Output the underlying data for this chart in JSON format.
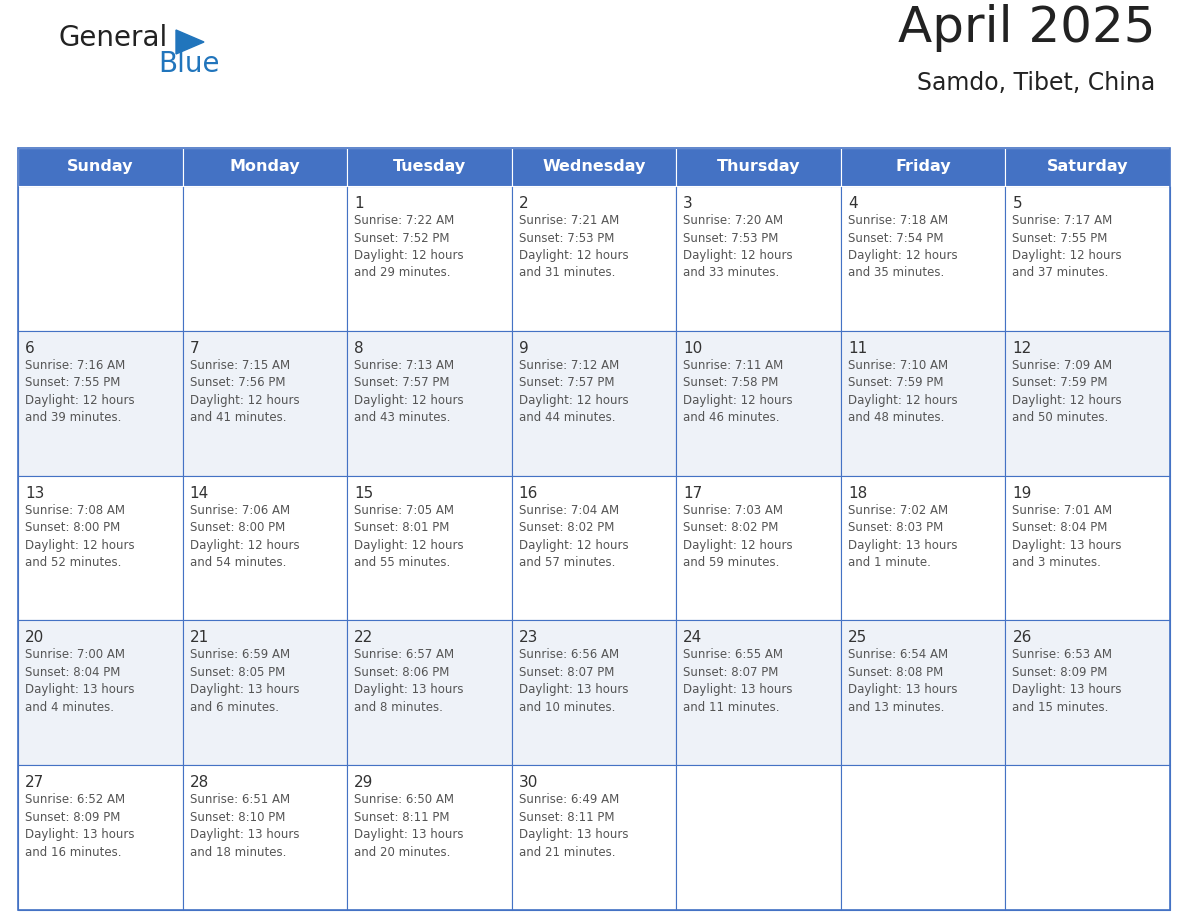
{
  "title": "April 2025",
  "subtitle": "Samdo, Tibet, China",
  "header_color": "#4472C4",
  "header_text_color": "#FFFFFF",
  "title_color": "#222222",
  "subtitle_color": "#222222",
  "day_number_color": "#333333",
  "cell_text_color": "#555555",
  "grid_line_color": "#4472C4",
  "cell_bg_even": "#FFFFFF",
  "cell_bg_odd": "#EEF2F8",
  "logo_general_color": "#222222",
  "logo_blue_color": "#2175BC",
  "logo_triangle_color": "#2175BC",
  "day_names": [
    "Sunday",
    "Monday",
    "Tuesday",
    "Wednesday",
    "Thursday",
    "Friday",
    "Saturday"
  ],
  "weeks": [
    [
      {
        "day": "",
        "text": ""
      },
      {
        "day": "",
        "text": ""
      },
      {
        "day": "1",
        "text": "Sunrise: 7:22 AM\nSunset: 7:52 PM\nDaylight: 12 hours\nand 29 minutes."
      },
      {
        "day": "2",
        "text": "Sunrise: 7:21 AM\nSunset: 7:53 PM\nDaylight: 12 hours\nand 31 minutes."
      },
      {
        "day": "3",
        "text": "Sunrise: 7:20 AM\nSunset: 7:53 PM\nDaylight: 12 hours\nand 33 minutes."
      },
      {
        "day": "4",
        "text": "Sunrise: 7:18 AM\nSunset: 7:54 PM\nDaylight: 12 hours\nand 35 minutes."
      },
      {
        "day": "5",
        "text": "Sunrise: 7:17 AM\nSunset: 7:55 PM\nDaylight: 12 hours\nand 37 minutes."
      }
    ],
    [
      {
        "day": "6",
        "text": "Sunrise: 7:16 AM\nSunset: 7:55 PM\nDaylight: 12 hours\nand 39 minutes."
      },
      {
        "day": "7",
        "text": "Sunrise: 7:15 AM\nSunset: 7:56 PM\nDaylight: 12 hours\nand 41 minutes."
      },
      {
        "day": "8",
        "text": "Sunrise: 7:13 AM\nSunset: 7:57 PM\nDaylight: 12 hours\nand 43 minutes."
      },
      {
        "day": "9",
        "text": "Sunrise: 7:12 AM\nSunset: 7:57 PM\nDaylight: 12 hours\nand 44 minutes."
      },
      {
        "day": "10",
        "text": "Sunrise: 7:11 AM\nSunset: 7:58 PM\nDaylight: 12 hours\nand 46 minutes."
      },
      {
        "day": "11",
        "text": "Sunrise: 7:10 AM\nSunset: 7:59 PM\nDaylight: 12 hours\nand 48 minutes."
      },
      {
        "day": "12",
        "text": "Sunrise: 7:09 AM\nSunset: 7:59 PM\nDaylight: 12 hours\nand 50 minutes."
      }
    ],
    [
      {
        "day": "13",
        "text": "Sunrise: 7:08 AM\nSunset: 8:00 PM\nDaylight: 12 hours\nand 52 minutes."
      },
      {
        "day": "14",
        "text": "Sunrise: 7:06 AM\nSunset: 8:00 PM\nDaylight: 12 hours\nand 54 minutes."
      },
      {
        "day": "15",
        "text": "Sunrise: 7:05 AM\nSunset: 8:01 PM\nDaylight: 12 hours\nand 55 minutes."
      },
      {
        "day": "16",
        "text": "Sunrise: 7:04 AM\nSunset: 8:02 PM\nDaylight: 12 hours\nand 57 minutes."
      },
      {
        "day": "17",
        "text": "Sunrise: 7:03 AM\nSunset: 8:02 PM\nDaylight: 12 hours\nand 59 minutes."
      },
      {
        "day": "18",
        "text": "Sunrise: 7:02 AM\nSunset: 8:03 PM\nDaylight: 13 hours\nand 1 minute."
      },
      {
        "day": "19",
        "text": "Sunrise: 7:01 AM\nSunset: 8:04 PM\nDaylight: 13 hours\nand 3 minutes."
      }
    ],
    [
      {
        "day": "20",
        "text": "Sunrise: 7:00 AM\nSunset: 8:04 PM\nDaylight: 13 hours\nand 4 minutes."
      },
      {
        "day": "21",
        "text": "Sunrise: 6:59 AM\nSunset: 8:05 PM\nDaylight: 13 hours\nand 6 minutes."
      },
      {
        "day": "22",
        "text": "Sunrise: 6:57 AM\nSunset: 8:06 PM\nDaylight: 13 hours\nand 8 minutes."
      },
      {
        "day": "23",
        "text": "Sunrise: 6:56 AM\nSunset: 8:07 PM\nDaylight: 13 hours\nand 10 minutes."
      },
      {
        "day": "24",
        "text": "Sunrise: 6:55 AM\nSunset: 8:07 PM\nDaylight: 13 hours\nand 11 minutes."
      },
      {
        "day": "25",
        "text": "Sunrise: 6:54 AM\nSunset: 8:08 PM\nDaylight: 13 hours\nand 13 minutes."
      },
      {
        "day": "26",
        "text": "Sunrise: 6:53 AM\nSunset: 8:09 PM\nDaylight: 13 hours\nand 15 minutes."
      }
    ],
    [
      {
        "day": "27",
        "text": "Sunrise: 6:52 AM\nSunset: 8:09 PM\nDaylight: 13 hours\nand 16 minutes."
      },
      {
        "day": "28",
        "text": "Sunrise: 6:51 AM\nSunset: 8:10 PM\nDaylight: 13 hours\nand 18 minutes."
      },
      {
        "day": "29",
        "text": "Sunrise: 6:50 AM\nSunset: 8:11 PM\nDaylight: 13 hours\nand 20 minutes."
      },
      {
        "day": "30",
        "text": "Sunrise: 6:49 AM\nSunset: 8:11 PM\nDaylight: 13 hours\nand 21 minutes."
      },
      {
        "day": "",
        "text": ""
      },
      {
        "day": "",
        "text": ""
      },
      {
        "day": "",
        "text": ""
      }
    ]
  ]
}
